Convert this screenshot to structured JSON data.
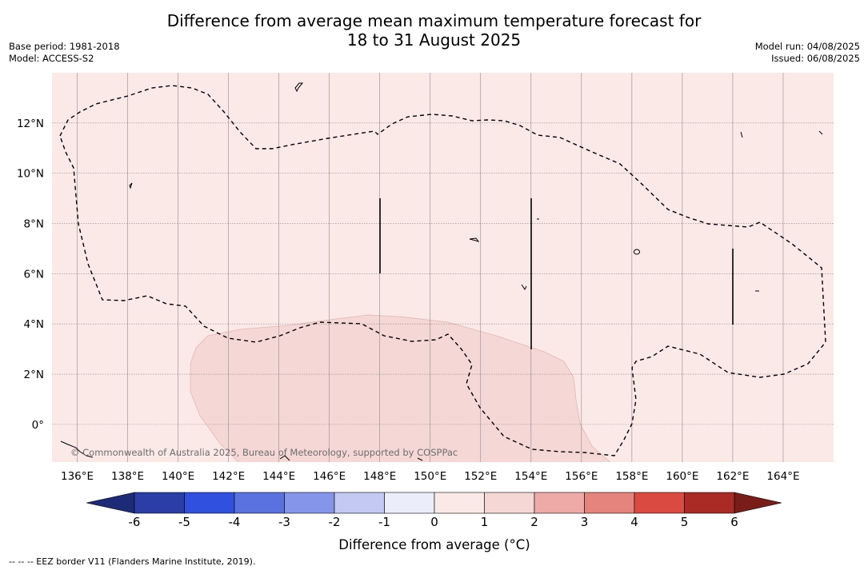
{
  "title_line1": "Difference from average mean maximum temperature forecast for",
  "title_line2": "18 to 31 August 2025",
  "base_period": "Base period: 1981-2018",
  "model": "Model: ACCESS-S2",
  "model_run": "Model run: 04/08/2025",
  "issued": "Issued: 06/08/2025",
  "copyright": "© Commonwealth of Australia 2025, Bureau of Meteorology, supported by COSPPac",
  "footnote": "-- -- -- EEZ border V11 (Flanders Marine Institute, 2019).",
  "map": {
    "lon_ticks": [
      "136°E",
      "138°E",
      "140°E",
      "142°E",
      "144°E",
      "146°E",
      "148°E",
      "150°E",
      "152°E",
      "154°E",
      "156°E",
      "158°E",
      "160°E",
      "162°E",
      "164°E"
    ],
    "lat_ticks": [
      "12°N",
      "10°N",
      "8°N",
      "6°N",
      "4°N",
      "2°N",
      "0°"
    ],
    "lon_range": [
      135,
      166
    ],
    "lat_range": [
      -1.5,
      14
    ],
    "background_color": "#fbe9e8",
    "anomaly_color": "#f5d7d5",
    "grid": true
  },
  "colorbar": {
    "label": "Difference from average (°C)",
    "ticks": [
      "-6",
      "-5",
      "-4",
      "-3",
      "-2",
      "-1",
      "0",
      "1",
      "2",
      "3",
      "4",
      "5",
      "6"
    ],
    "bins": [
      {
        "from": -6,
        "to": -5,
        "color": "#2b3ea8"
      },
      {
        "from": -5,
        "to": -4,
        "color": "#3050e0"
      },
      {
        "from": -4,
        "to": -3,
        "color": "#5a72e0"
      },
      {
        "from": -3,
        "to": -2,
        "color": "#8596ea"
      },
      {
        "from": -2,
        "to": -1,
        "color": "#c3c9f3"
      },
      {
        "from": -1,
        "to": 0,
        "color": "#ebedfb"
      },
      {
        "from": 0,
        "to": 1,
        "color": "#fbe9e8"
      },
      {
        "from": 1,
        "to": 2,
        "color": "#f5d7d5"
      },
      {
        "from": 2,
        "to": 3,
        "color": "#eeaaa6"
      },
      {
        "from": 3,
        "to": 4,
        "color": "#e5847c"
      },
      {
        "from": 4,
        "to": 5,
        "color": "#db4a40"
      },
      {
        "from": 5,
        "to": 6,
        "color": "#aa2b25"
      }
    ],
    "low_extend_color": "#1c2a78",
    "high_extend_color": "#7a1c18"
  }
}
